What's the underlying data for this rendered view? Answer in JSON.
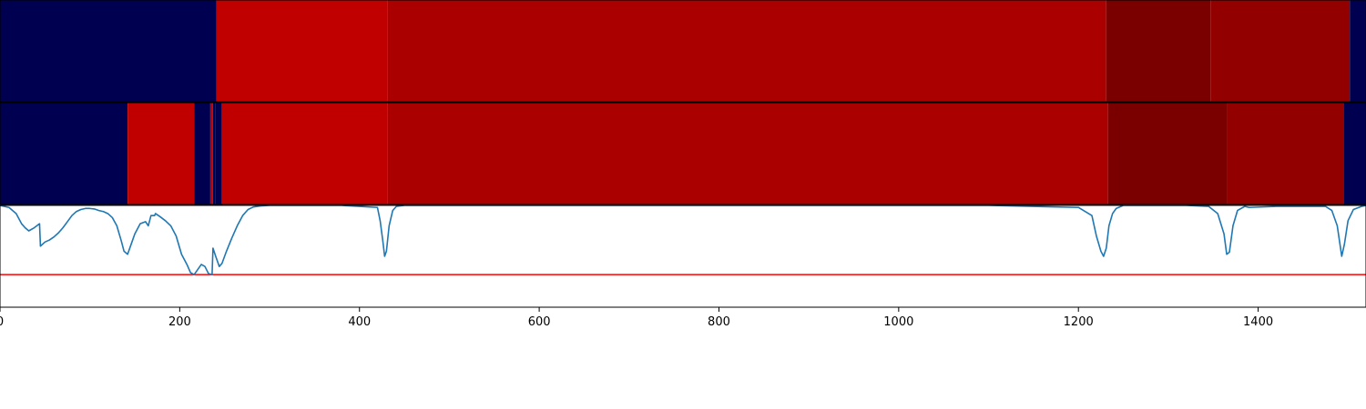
{
  "chart_data": {
    "type": "heatmap",
    "title": "",
    "xlabel": "",
    "ylabel": "",
    "xlim": [
      0,
      1520
    ],
    "x_ticks": [
      0,
      200,
      400,
      600,
      800,
      1000,
      1200,
      1400
    ],
    "x_tick_labels": [
      "0",
      "200",
      "400",
      "600",
      "800",
      "1000",
      "1200",
      "1400"
    ],
    "colors": {
      "navy": "#000050",
      "red": "#c00000",
      "dark_red": "#aa0000",
      "darker_red": "#920000",
      "maroon": "#7a0000",
      "line": "#1f77b4",
      "threshold": "#ff0000"
    },
    "segment_rows": [
      {
        "segments": [
          {
            "start": 0,
            "end": 241,
            "color": "navy"
          },
          {
            "start": 241,
            "end": 431,
            "color": "red"
          },
          {
            "start": 431,
            "end": 1231,
            "color": "dark_red"
          },
          {
            "start": 1231,
            "end": 1347,
            "color": "maroon"
          },
          {
            "start": 1347,
            "end": 1502,
            "color": "darker_red"
          },
          {
            "start": 1502,
            "end": 1520,
            "color": "navy"
          }
        ]
      },
      {
        "segments": [
          {
            "start": 0,
            "end": 142,
            "color": "navy"
          },
          {
            "start": 142,
            "end": 216,
            "color": "red"
          },
          {
            "start": 216,
            "end": 234,
            "color": "navy"
          },
          {
            "start": 234,
            "end": 237,
            "color": "red"
          },
          {
            "start": 237,
            "end": 240,
            "color": "navy"
          },
          {
            "start": 240,
            "end": 247,
            "color": "navy"
          },
          {
            "start": 247,
            "end": 431,
            "color": "red"
          },
          {
            "start": 431,
            "end": 1233,
            "color": "dark_red"
          },
          {
            "start": 1233,
            "end": 1365,
            "color": "maroon"
          },
          {
            "start": 1365,
            "end": 1495,
            "color": "darker_red"
          },
          {
            "start": 1495,
            "end": 1520,
            "color": "navy"
          }
        ]
      }
    ],
    "line_panel": {
      "ylim": [
        -1,
        0
      ],
      "threshold": -0.68,
      "series": {
        "x": [
          0,
          10,
          18,
          24,
          28,
          32,
          38,
          44,
          45,
          50,
          55,
          60,
          65,
          70,
          75,
          80,
          85,
          90,
          95,
          100,
          105,
          110,
          115,
          120,
          125,
          130,
          135,
          138,
          142,
          146,
          150,
          156,
          162,
          165,
          168,
          172,
          173,
          178,
          184,
          190,
          196,
          202,
          208,
          212,
          216,
          220,
          224,
          228,
          232,
          236,
          237,
          240,
          244,
          247,
          252,
          258,
          264,
          270,
          276,
          282,
          290,
          300,
          330,
          380,
          420,
          423,
          426,
          428,
          430,
          433,
          437,
          441,
          450,
          500,
          600,
          800,
          1000,
          1100,
          1200,
          1215,
          1220,
          1225,
          1228,
          1231,
          1234,
          1238,
          1242,
          1250,
          1280,
          1320,
          1345,
          1355,
          1362,
          1365,
          1368,
          1372,
          1377,
          1385,
          1390,
          1420,
          1460,
          1475,
          1482,
          1488,
          1493,
          1496,
          1500,
          1506,
          1515,
          1520
        ],
        "y": [
          0,
          -0.02,
          -0.08,
          -0.18,
          -0.22,
          -0.25,
          -0.22,
          -0.18,
          -0.4,
          -0.36,
          -0.34,
          -0.31,
          -0.27,
          -0.22,
          -0.16,
          -0.1,
          -0.06,
          -0.04,
          -0.03,
          -0.03,
          -0.035,
          -0.05,
          -0.06,
          -0.08,
          -0.12,
          -0.2,
          -0.35,
          -0.45,
          -0.48,
          -0.38,
          -0.28,
          -0.18,
          -0.16,
          -0.2,
          -0.1,
          -0.1,
          -0.08,
          -0.11,
          -0.15,
          -0.2,
          -0.3,
          -0.48,
          -0.58,
          -0.66,
          -0.68,
          -0.63,
          -0.58,
          -0.6,
          -0.67,
          -0.68,
          -0.42,
          -0.5,
          -0.6,
          -0.57,
          -0.45,
          -0.32,
          -0.2,
          -0.1,
          -0.04,
          -0.015,
          -0.005,
          0,
          0,
          0,
          -0.02,
          -0.15,
          -0.35,
          -0.5,
          -0.45,
          -0.2,
          -0.05,
          -0.01,
          0,
          0,
          0,
          0,
          0,
          0,
          -0.02,
          -0.1,
          -0.3,
          -0.45,
          -0.5,
          -0.42,
          -0.2,
          -0.08,
          -0.03,
          0,
          0,
          0,
          -0.01,
          -0.08,
          -0.28,
          -0.48,
          -0.46,
          -0.2,
          -0.05,
          -0.01,
          -0.02,
          -0.01,
          -0.01,
          -0.01,
          -0.05,
          -0.2,
          -0.5,
          -0.38,
          -0.15,
          -0.04,
          -0.01,
          0
        ]
      }
    }
  }
}
